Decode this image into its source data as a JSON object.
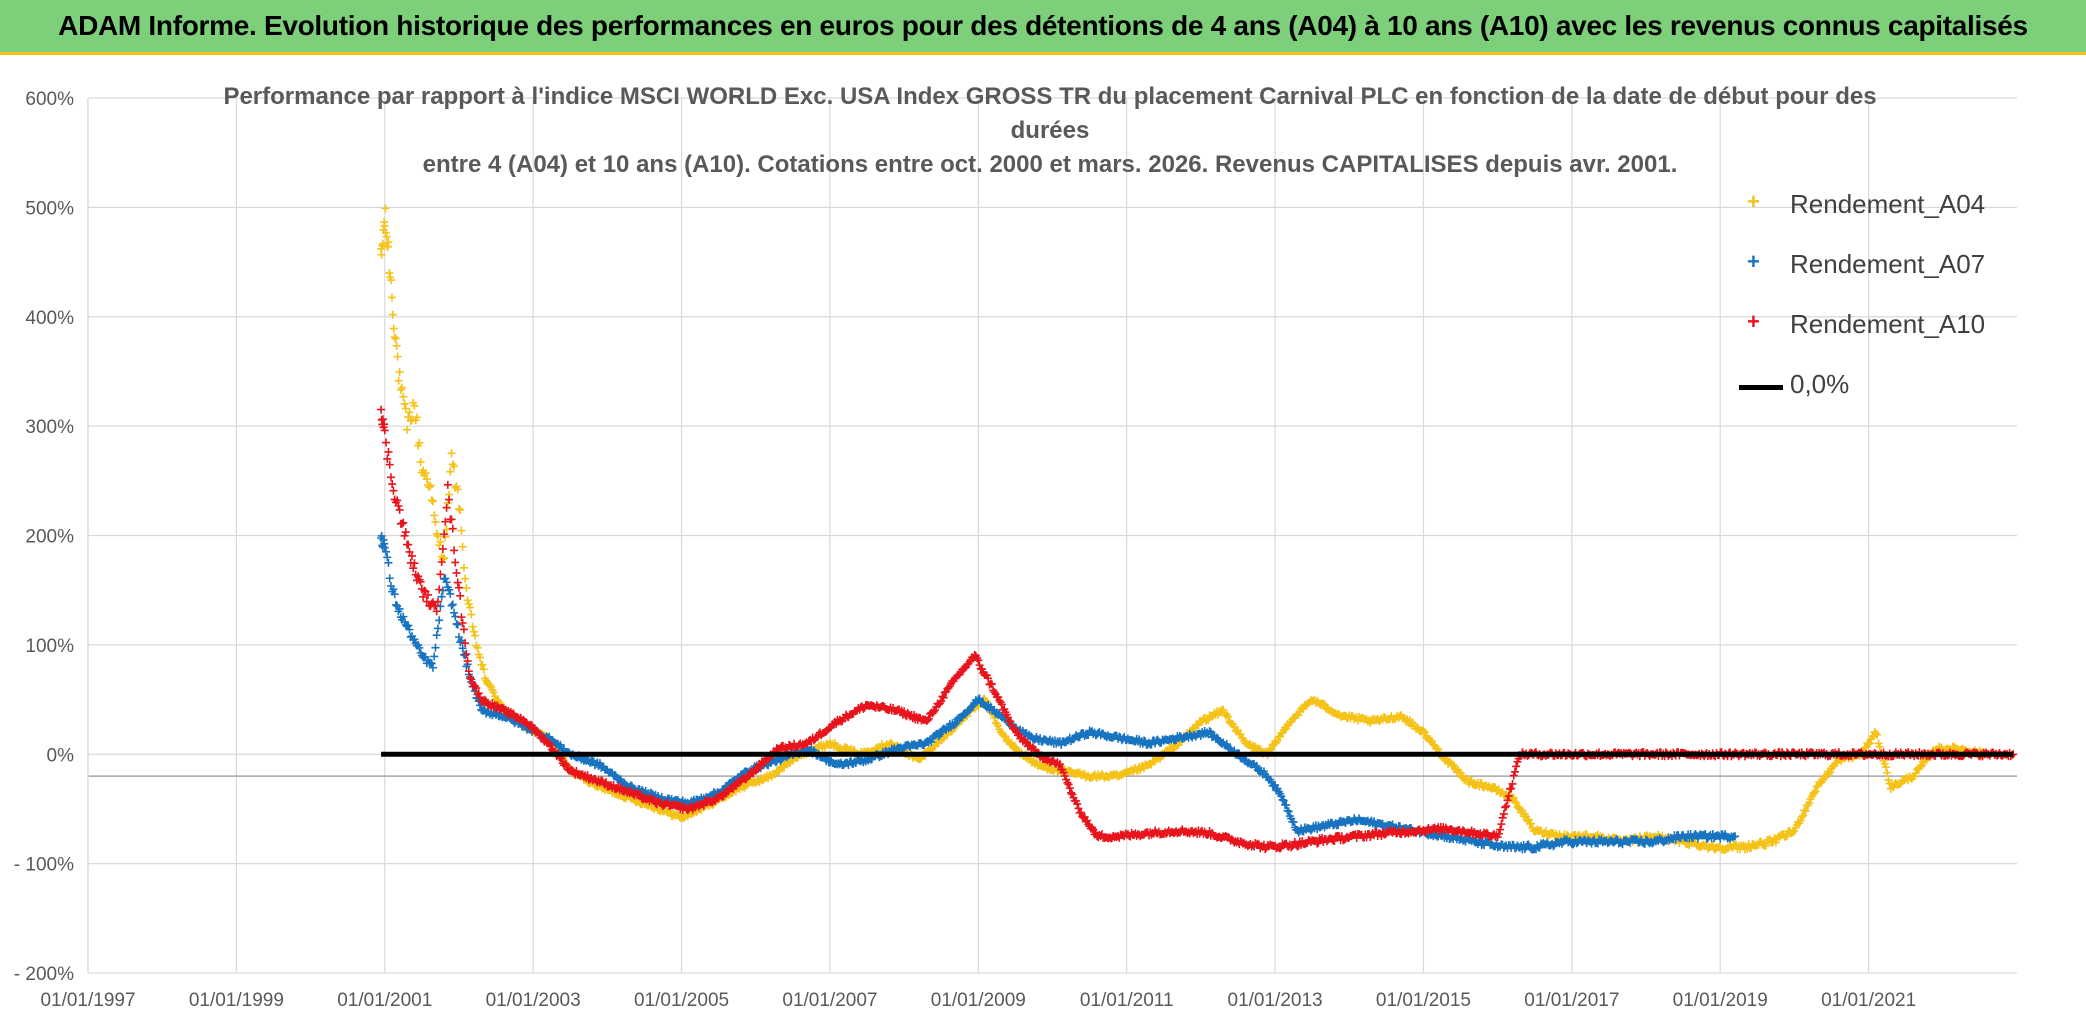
{
  "banner": {
    "title": "ADAM Informe. Evolution historique des performances en euros pour des détentions de 4 ans (A04) à 10 ans (A10) avec les revenus connus capitalisés"
  },
  "chart_data": {
    "type": "scatter",
    "title_lines": [
      "Performance par rapport à l'indice MSCI WORLD Exc. USA Index GROSS TR  du placement Carnival PLC en fonction de la date de début pour des",
      "durées",
      "entre 4 (A04) et 10 ans (A10). Cotations entre oct. 2000 et mars. 2026. Revenus CAPITALISES depuis avr. 2001."
    ],
    "xlabel": "",
    "ylabel": "",
    "x_tick_labels": [
      "01/01/1997",
      "01/01/1999",
      "01/01/2001",
      "01/01/2003",
      "01/01/2005",
      "01/01/2007",
      "01/01/2009",
      "01/01/2011",
      "01/01/2013",
      "01/01/2015",
      "01/01/2017",
      "01/01/2019",
      "01/01/2021"
    ],
    "xlim": [
      1997.0,
      2023.0
    ],
    "y_tick_labels": [
      "600%",
      "500%",
      "400%",
      "300%",
      "200%",
      "100%",
      "0%",
      "- 100%",
      "- 200%"
    ],
    "ylim": [
      -200,
      600
    ],
    "grid": true,
    "legend_position": "top-right",
    "series": [
      {
        "name": "Rendement_A04",
        "color": "#f5c219",
        "marker": "+",
        "points": [
          [
            2000.95,
            450
          ],
          [
            2001.0,
            490
          ],
          [
            2001.05,
            460
          ],
          [
            2001.12,
            400
          ],
          [
            2001.2,
            340
          ],
          [
            2001.3,
            300
          ],
          [
            2001.4,
            320
          ],
          [
            2001.5,
            260
          ],
          [
            2001.6,
            250
          ],
          [
            2001.7,
            200
          ],
          [
            2001.8,
            180
          ],
          [
            2001.9,
            270
          ],
          [
            2002.0,
            230
          ],
          [
            2002.1,
            150
          ],
          [
            2002.2,
            110
          ],
          [
            2002.35,
            70
          ],
          [
            2002.6,
            40
          ],
          [
            2002.9,
            25
          ],
          [
            2003.2,
            15
          ],
          [
            2003.5,
            -15
          ],
          [
            2003.9,
            -30
          ],
          [
            2004.3,
            -40
          ],
          [
            2004.7,
            -50
          ],
          [
            2005.0,
            -58
          ],
          [
            2005.4,
            -45
          ],
          [
            2005.8,
            -30
          ],
          [
            2006.2,
            -20
          ],
          [
            2006.6,
            0
          ],
          [
            2007.0,
            10
          ],
          [
            2007.4,
            0
          ],
          [
            2007.8,
            10
          ],
          [
            2008.2,
            -5
          ],
          [
            2008.6,
            20
          ],
          [
            2008.9,
            40
          ],
          [
            2009.1,
            50
          ],
          [
            2009.3,
            20
          ],
          [
            2009.5,
            5
          ],
          [
            2009.8,
            -10
          ],
          [
            2010.1,
            -15
          ],
          [
            2010.5,
            -20
          ],
          [
            2010.9,
            -20
          ],
          [
            2011.3,
            -10
          ],
          [
            2011.7,
            10
          ],
          [
            2012.0,
            30
          ],
          [
            2012.3,
            40
          ],
          [
            2012.6,
            10
          ],
          [
            2012.9,
            0
          ],
          [
            2013.2,
            30
          ],
          [
            2013.5,
            50
          ],
          [
            2013.9,
            35
          ],
          [
            2014.3,
            30
          ],
          [
            2014.7,
            35
          ],
          [
            2015.0,
            20
          ],
          [
            2015.3,
            -5
          ],
          [
            2015.6,
            -25
          ],
          [
            2015.9,
            -30
          ],
          [
            2016.2,
            -40
          ],
          [
            2016.5,
            -70
          ],
          [
            2016.9,
            -75
          ],
          [
            2017.3,
            -75
          ],
          [
            2017.7,
            -80
          ],
          [
            2018.1,
            -75
          ],
          [
            2018.5,
            -80
          ],
          [
            2018.9,
            -85
          ],
          [
            2019.3,
            -85
          ],
          [
            2019.7,
            -80
          ],
          [
            2020.0,
            -70
          ],
          [
            2020.3,
            -30
          ],
          [
            2020.6,
            -5
          ],
          [
            2020.9,
            0
          ],
          [
            2021.1,
            20
          ],
          [
            2021.3,
            -30
          ],
          [
            2021.6,
            -20
          ],
          [
            2021.9,
            5
          ],
          [
            2022.2,
            5
          ],
          [
            2022.6,
            0
          ]
        ]
      },
      {
        "name": "Rendement_A07",
        "color": "#1874c0",
        "marker": "+",
        "points": [
          [
            2000.95,
            200
          ],
          [
            2001.0,
            190
          ],
          [
            2001.1,
            150
          ],
          [
            2001.2,
            130
          ],
          [
            2001.35,
            110
          ],
          [
            2001.5,
            90
          ],
          [
            2001.65,
            80
          ],
          [
            2001.8,
            160
          ],
          [
            2001.9,
            140
          ],
          [
            2002.0,
            110
          ],
          [
            2002.15,
            70
          ],
          [
            2002.3,
            40
          ],
          [
            2002.6,
            35
          ],
          [
            2002.9,
            25
          ],
          [
            2003.2,
            15
          ],
          [
            2003.5,
            0
          ],
          [
            2003.9,
            -10
          ],
          [
            2004.3,
            -30
          ],
          [
            2004.7,
            -40
          ],
          [
            2005.1,
            -45
          ],
          [
            2005.5,
            -35
          ],
          [
            2005.9,
            -15
          ],
          [
            2006.3,
            -5
          ],
          [
            2006.7,
            5
          ],
          [
            2007.1,
            -10
          ],
          [
            2007.5,
            -5
          ],
          [
            2007.9,
            5
          ],
          [
            2008.3,
            10
          ],
          [
            2008.7,
            30
          ],
          [
            2009.0,
            50
          ],
          [
            2009.3,
            35
          ],
          [
            2009.7,
            15
          ],
          [
            2010.1,
            10
          ],
          [
            2010.5,
            20
          ],
          [
            2010.9,
            15
          ],
          [
            2011.3,
            10
          ],
          [
            2011.7,
            15
          ],
          [
            2012.1,
            20
          ],
          [
            2012.5,
            0
          ],
          [
            2012.9,
            -20
          ],
          [
            2013.1,
            -40
          ],
          [
            2013.3,
            -70
          ],
          [
            2013.7,
            -65
          ],
          [
            2014.1,
            -60
          ],
          [
            2014.5,
            -65
          ],
          [
            2014.9,
            -70
          ],
          [
            2015.3,
            -75
          ],
          [
            2015.7,
            -80
          ],
          [
            2016.1,
            -85
          ],
          [
            2016.5,
            -85
          ],
          [
            2016.9,
            -80
          ],
          [
            2017.3,
            -80
          ],
          [
            2017.7,
            -80
          ],
          [
            2018.1,
            -80
          ],
          [
            2018.5,
            -75
          ],
          [
            2018.9,
            -75
          ],
          [
            2019.2,
            -75
          ]
        ]
      },
      {
        "name": "Rendement_A10",
        "color": "#e8141c",
        "marker": "+",
        "points": [
          [
            2000.95,
            320
          ],
          [
            2001.0,
            290
          ],
          [
            2001.1,
            250
          ],
          [
            2001.2,
            220
          ],
          [
            2001.35,
            180
          ],
          [
            2001.5,
            150
          ],
          [
            2001.7,
            130
          ],
          [
            2001.85,
            240
          ],
          [
            2001.95,
            180
          ],
          [
            2002.05,
            120
          ],
          [
            2002.15,
            70
          ],
          [
            2002.3,
            50
          ],
          [
            2002.6,
            40
          ],
          [
            2002.9,
            30
          ],
          [
            2003.2,
            10
          ],
          [
            2003.5,
            -15
          ],
          [
            2003.9,
            -25
          ],
          [
            2004.3,
            -35
          ],
          [
            2004.7,
            -45
          ],
          [
            2005.1,
            -50
          ],
          [
            2005.5,
            -40
          ],
          [
            2005.9,
            -20
          ],
          [
            2006.3,
            5
          ],
          [
            2006.7,
            10
          ],
          [
            2007.1,
            30
          ],
          [
            2007.5,
            45
          ],
          [
            2007.9,
            40
          ],
          [
            2008.3,
            30
          ],
          [
            2008.7,
            70
          ],
          [
            2008.95,
            90
          ],
          [
            2009.2,
            60
          ],
          [
            2009.5,
            20
          ],
          [
            2009.8,
            0
          ],
          [
            2010.1,
            -10
          ],
          [
            2010.35,
            -50
          ],
          [
            2010.6,
            -75
          ],
          [
            2010.9,
            -75
          ],
          [
            2011.3,
            -72
          ],
          [
            2011.7,
            -70
          ],
          [
            2012.1,
            -72
          ],
          [
            2012.5,
            -80
          ],
          [
            2012.9,
            -85
          ],
          [
            2013.3,
            -82
          ],
          [
            2013.7,
            -78
          ],
          [
            2014.1,
            -75
          ],
          [
            2014.5,
            -72
          ],
          [
            2014.9,
            -70
          ],
          [
            2015.3,
            -68
          ],
          [
            2015.7,
            -72
          ],
          [
            2016.0,
            -75
          ],
          [
            2016.3,
            0
          ],
          [
            2016.6,
            0
          ],
          [
            2017.0,
            0
          ],
          [
            2017.5,
            0
          ],
          [
            2018.0,
            0
          ],
          [
            2018.5,
            0
          ],
          [
            2019.0,
            0
          ],
          [
            2019.5,
            0
          ],
          [
            2020.0,
            0
          ],
          [
            2020.5,
            0
          ],
          [
            2021.0,
            0
          ],
          [
            2021.5,
            0
          ],
          [
            2022.0,
            0
          ],
          [
            2022.5,
            0
          ],
          [
            2022.95,
            0
          ]
        ]
      },
      {
        "name": "0,0%",
        "color": "#000000",
        "type": "line",
        "points": [
          [
            2000.95,
            0
          ],
          [
            2022.95,
            0
          ]
        ]
      }
    ]
  }
}
